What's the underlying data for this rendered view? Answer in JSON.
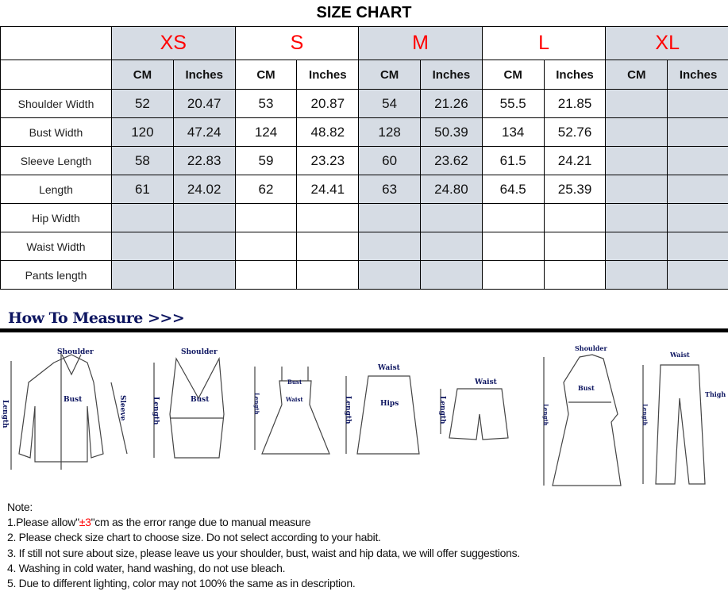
{
  "title": "SIZE CHART",
  "sizes": [
    "XS",
    "S",
    "M",
    "L",
    "XL"
  ],
  "units": {
    "cm": "CM",
    "in": "Inches"
  },
  "rows": [
    {
      "label": "Shoulder Width",
      "values": [
        "52",
        "20.47",
        "53",
        "20.87",
        "54",
        "21.26",
        "55.5",
        "21.85",
        "",
        ""
      ]
    },
    {
      "label": "Bust Width",
      "values": [
        "120",
        "47.24",
        "124",
        "48.82",
        "128",
        "50.39",
        "134",
        "52.76",
        "",
        ""
      ]
    },
    {
      "label": "Sleeve Length",
      "values": [
        "58",
        "22.83",
        "59",
        "23.23",
        "60",
        "23.62",
        "61.5",
        "24.21",
        "",
        ""
      ]
    },
    {
      "label": "Length",
      "values": [
        "61",
        "24.02",
        "62",
        "24.41",
        "63",
        "24.80",
        "64.5",
        "25.39",
        "",
        ""
      ]
    },
    {
      "label": "Hip Width",
      "values": [
        "",
        "",
        "",
        "",
        "",
        "",
        "",
        "",
        "",
        ""
      ]
    },
    {
      "label": "Waist Width",
      "values": [
        "",
        "",
        "",
        "",
        "",
        "",
        "",
        "",
        "",
        ""
      ]
    },
    {
      "label": "Pants length",
      "values": [
        "",
        "",
        "",
        "",
        "",
        "",
        "",
        "",
        "",
        ""
      ]
    }
  ],
  "shade_color": "#d6dce4",
  "size_color": "#ff0000",
  "how_to_measure": "How To Measure >>>",
  "labels": {
    "shoulder": "Shoulder",
    "length": "Length",
    "bust": "Bust",
    "sleeve": "Sleeve",
    "waist": "Waist",
    "hips": "Hips",
    "thigh": "Thigh"
  },
  "notes": {
    "heading": "Note:",
    "n1_a": "1.Please allow\"",
    "n1_b": "±3",
    "n1_c": "\"cm as the error range due to manual measure",
    "n2": "2. Please check size chart to choose size. Do not select according to your habit.",
    "n3": "3. If still not sure about size, please leave us your shoulder, bust, waist and hip data, we will offer suggestions.",
    "n4": "4. Washing in cold water, hand washing, do not use bleach.",
    "n5": "5. Due to different lighting, color may not 100% the same as in description."
  }
}
